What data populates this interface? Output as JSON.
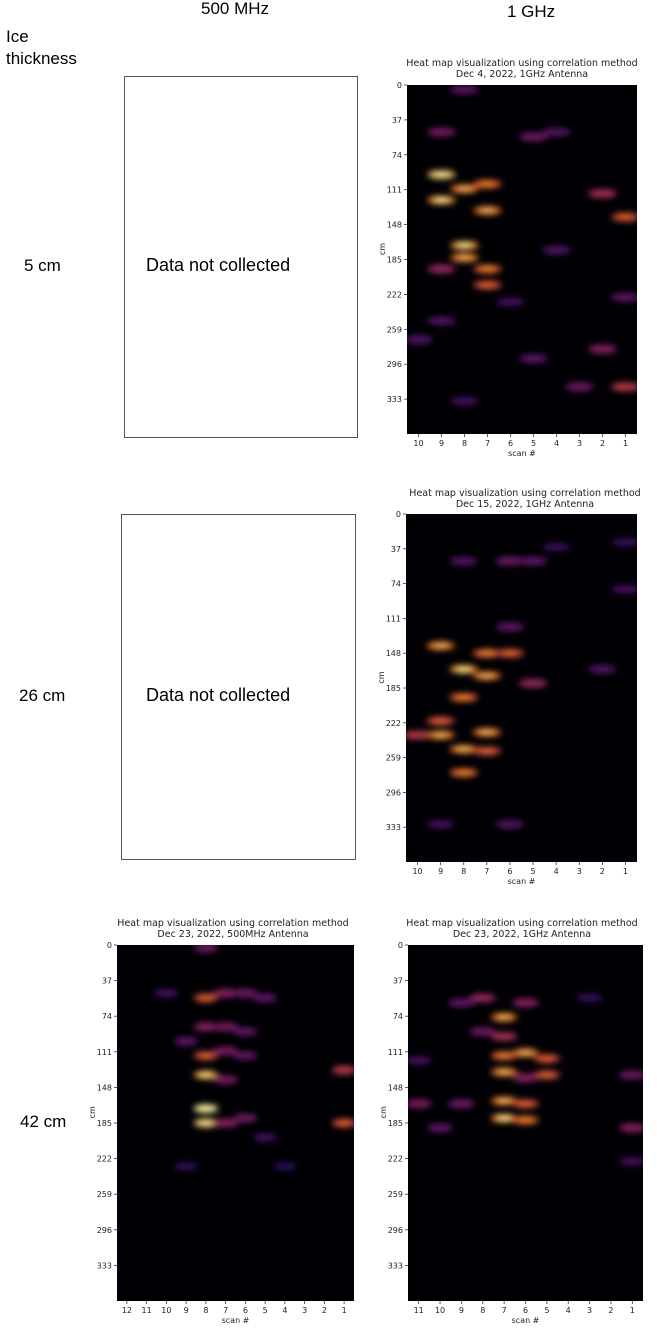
{
  "columns": {
    "mhz500": "500 MHz",
    "ghz1": "1 GHz"
  },
  "ice_label": {
    "line1": "Ice",
    "line2": "thickness"
  },
  "rows": [
    {
      "label": "5 cm"
    },
    {
      "label": "26 cm"
    },
    {
      "label": "42 cm"
    }
  ],
  "placeholders": [
    {
      "text": "Data not collected"
    },
    {
      "text": "Data not collected"
    }
  ],
  "colors": {
    "heat_low": "#000004",
    "heat_mid": "#7a1d8a",
    "heat_high": "#fcf7a0"
  },
  "chart_data": [
    {
      "type": "heatmap",
      "title_line1": "Heat map visualization using correlation method",
      "title_line2": "Dec 4, 2022, 1GHz Antenna",
      "xlabel": "scan #",
      "ylabel": "cm",
      "x_ticks": [
        "10",
        "9",
        "8",
        "7",
        "6",
        "5",
        "4",
        "3",
        "2",
        "1"
      ],
      "y_ticks": [
        "0",
        "37",
        "74",
        "111",
        "148",
        "185",
        "222",
        "259",
        "296",
        "333"
      ],
      "ylim": [
        0,
        370
      ],
      "colormap": "inferno",
      "hotspots": [
        {
          "scan": 9,
          "cm": 95,
          "v": 0.95
        },
        {
          "scan": 9,
          "cm": 122,
          "v": 0.9
        },
        {
          "scan": 8,
          "cm": 110,
          "v": 0.85
        },
        {
          "scan": 7,
          "cm": 105,
          "v": 0.8
        },
        {
          "scan": 7,
          "cm": 133,
          "v": 0.85
        },
        {
          "scan": 8,
          "cm": 170,
          "v": 0.9
        },
        {
          "scan": 8,
          "cm": 183,
          "v": 0.85
        },
        {
          "scan": 7,
          "cm": 195,
          "v": 0.8
        },
        {
          "scan": 7,
          "cm": 212,
          "v": 0.75
        },
        {
          "scan": 9,
          "cm": 195,
          "v": 0.6
        },
        {
          "scan": 8,
          "cm": 5,
          "v": 0.4
        },
        {
          "scan": 9,
          "cm": 50,
          "v": 0.5
        },
        {
          "scan": 2,
          "cm": 115,
          "v": 0.65
        },
        {
          "scan": 1,
          "cm": 140,
          "v": 0.75
        },
        {
          "scan": 2,
          "cm": 280,
          "v": 0.55
        },
        {
          "scan": 1,
          "cm": 320,
          "v": 0.7
        },
        {
          "scan": 3,
          "cm": 320,
          "v": 0.45
        },
        {
          "scan": 5,
          "cm": 55,
          "v": 0.45
        },
        {
          "scan": 4,
          "cm": 50,
          "v": 0.35
        },
        {
          "scan": 10,
          "cm": 270,
          "v": 0.35
        },
        {
          "scan": 5,
          "cm": 290,
          "v": 0.4
        },
        {
          "scan": 9,
          "cm": 250,
          "v": 0.35
        },
        {
          "scan": 1,
          "cm": 225,
          "v": 0.4
        },
        {
          "scan": 4,
          "cm": 175,
          "v": 0.35
        },
        {
          "scan": 6,
          "cm": 230,
          "v": 0.3
        },
        {
          "scan": 8,
          "cm": 335,
          "v": 0.3
        }
      ]
    },
    {
      "type": "heatmap",
      "title_line1": "Heat map visualization using correlation method",
      "title_line2": "Dec 15, 2022, 1GHz Antenna",
      "xlabel": "scan #",
      "ylabel": "cm",
      "x_ticks": [
        "10",
        "9",
        "8",
        "7",
        "6",
        "5",
        "4",
        "3",
        "2",
        "1"
      ],
      "y_ticks": [
        "0",
        "37",
        "74",
        "111",
        "148",
        "185",
        "222",
        "259",
        "296",
        "333"
      ],
      "ylim": [
        0,
        370
      ],
      "colormap": "inferno",
      "hotspots": [
        {
          "scan": 9,
          "cm": 140,
          "v": 0.85
        },
        {
          "scan": 8,
          "cm": 165,
          "v": 0.9
        },
        {
          "scan": 7,
          "cm": 172,
          "v": 0.85
        },
        {
          "scan": 7,
          "cm": 148,
          "v": 0.8
        },
        {
          "scan": 6,
          "cm": 148,
          "v": 0.75
        },
        {
          "scan": 5,
          "cm": 180,
          "v": 0.6
        },
        {
          "scan": 8,
          "cm": 195,
          "v": 0.8
        },
        {
          "scan": 9,
          "cm": 220,
          "v": 0.75
        },
        {
          "scan": 10,
          "cm": 235,
          "v": 0.7
        },
        {
          "scan": 9,
          "cm": 235,
          "v": 0.85
        },
        {
          "scan": 7,
          "cm": 232,
          "v": 0.85
        },
        {
          "scan": 8,
          "cm": 250,
          "v": 0.85
        },
        {
          "scan": 7,
          "cm": 252,
          "v": 0.75
        },
        {
          "scan": 8,
          "cm": 275,
          "v": 0.8
        },
        {
          "scan": 6,
          "cm": 50,
          "v": 0.45
        },
        {
          "scan": 5,
          "cm": 50,
          "v": 0.4
        },
        {
          "scan": 8,
          "cm": 50,
          "v": 0.35
        },
        {
          "scan": 6,
          "cm": 120,
          "v": 0.4
        },
        {
          "scan": 2,
          "cm": 165,
          "v": 0.35
        },
        {
          "scan": 1,
          "cm": 80,
          "v": 0.3
        },
        {
          "scan": 6,
          "cm": 330,
          "v": 0.35
        },
        {
          "scan": 9,
          "cm": 330,
          "v": 0.3
        },
        {
          "scan": 4,
          "cm": 35,
          "v": 0.25
        },
        {
          "scan": 1,
          "cm": 30,
          "v": 0.25
        }
      ]
    },
    {
      "type": "heatmap",
      "title_line1": "Heat map visualization using correlation method",
      "title_line2": "Dec 23, 2022, 500MHz Antenna",
      "xlabel": "scan #",
      "ylabel": "cm",
      "x_ticks": [
        "12",
        "11",
        "10",
        "9",
        "8",
        "7",
        "6",
        "5",
        "4",
        "3",
        "2",
        "1"
      ],
      "y_ticks": [
        "0",
        "37",
        "74",
        "111",
        "148",
        "185",
        "222",
        "259",
        "296",
        "333"
      ],
      "ylim": [
        0,
        370
      ],
      "colormap": "inferno",
      "hotspots": [
        {
          "scan": 8,
          "cm": 55,
          "v": 0.75
        },
        {
          "scan": 7,
          "cm": 50,
          "v": 0.55
        },
        {
          "scan": 6,
          "cm": 50,
          "v": 0.45
        },
        {
          "scan": 5,
          "cm": 55,
          "v": 0.4
        },
        {
          "scan": 8,
          "cm": 85,
          "v": 0.55
        },
        {
          "scan": 7,
          "cm": 85,
          "v": 0.5
        },
        {
          "scan": 6,
          "cm": 90,
          "v": 0.4
        },
        {
          "scan": 8,
          "cm": 115,
          "v": 0.75
        },
        {
          "scan": 7,
          "cm": 110,
          "v": 0.5
        },
        {
          "scan": 6,
          "cm": 115,
          "v": 0.4
        },
        {
          "scan": 8,
          "cm": 135,
          "v": 0.9
        },
        {
          "scan": 7,
          "cm": 140,
          "v": 0.5
        },
        {
          "scan": 8,
          "cm": 170,
          "v": 1.0
        },
        {
          "scan": 8,
          "cm": 185,
          "v": 0.95
        },
        {
          "scan": 7,
          "cm": 185,
          "v": 0.55
        },
        {
          "scan": 6,
          "cm": 180,
          "v": 0.45
        },
        {
          "scan": 9,
          "cm": 100,
          "v": 0.4
        },
        {
          "scan": 10,
          "cm": 50,
          "v": 0.3
        },
        {
          "scan": 1,
          "cm": 130,
          "v": 0.7
        },
        {
          "scan": 1,
          "cm": 185,
          "v": 0.75
        },
        {
          "scan": 8,
          "cm": 3,
          "v": 0.45
        },
        {
          "scan": 5,
          "cm": 200,
          "v": 0.3
        },
        {
          "scan": 9,
          "cm": 230,
          "v": 0.25
        },
        {
          "scan": 4,
          "cm": 230,
          "v": 0.2
        }
      ]
    },
    {
      "type": "heatmap",
      "title_line1": "Heat map visualization using correlation method",
      "title_line2": "Dec 23, 2022, 1GHz Antenna",
      "xlabel": "scan #",
      "ylabel": "cm",
      "x_ticks": [
        "11",
        "10",
        "9",
        "8",
        "7",
        "6",
        "5",
        "4",
        "3",
        "2",
        "1"
      ],
      "y_ticks": [
        "0",
        "37",
        "74",
        "111",
        "148",
        "185",
        "222",
        "259",
        "296",
        "333"
      ],
      "ylim": [
        0,
        370
      ],
      "colormap": "inferno",
      "hotspots": [
        {
          "scan": 7,
          "cm": 75,
          "v": 0.85
        },
        {
          "scan": 6,
          "cm": 60,
          "v": 0.55
        },
        {
          "scan": 8,
          "cm": 55,
          "v": 0.6
        },
        {
          "scan": 7,
          "cm": 95,
          "v": 0.65
        },
        {
          "scan": 8,
          "cm": 90,
          "v": 0.45
        },
        {
          "scan": 6,
          "cm": 112,
          "v": 0.85
        },
        {
          "scan": 7,
          "cm": 115,
          "v": 0.8
        },
        {
          "scan": 5,
          "cm": 118,
          "v": 0.75
        },
        {
          "scan": 7,
          "cm": 132,
          "v": 0.85
        },
        {
          "scan": 5,
          "cm": 135,
          "v": 0.75
        },
        {
          "scan": 6,
          "cm": 138,
          "v": 0.55
        },
        {
          "scan": 7,
          "cm": 162,
          "v": 0.85
        },
        {
          "scan": 6,
          "cm": 165,
          "v": 0.75
        },
        {
          "scan": 7,
          "cm": 180,
          "v": 0.9
        },
        {
          "scan": 6,
          "cm": 182,
          "v": 0.8
        },
        {
          "scan": 9,
          "cm": 165,
          "v": 0.45
        },
        {
          "scan": 11,
          "cm": 165,
          "v": 0.5
        },
        {
          "scan": 10,
          "cm": 190,
          "v": 0.4
        },
        {
          "scan": 9,
          "cm": 60,
          "v": 0.4
        },
        {
          "scan": 1,
          "cm": 135,
          "v": 0.45
        },
        {
          "scan": 1,
          "cm": 190,
          "v": 0.55
        },
        {
          "scan": 3,
          "cm": 55,
          "v": 0.25
        },
        {
          "scan": 11,
          "cm": 120,
          "v": 0.3
        },
        {
          "scan": 1,
          "cm": 225,
          "v": 0.3
        }
      ]
    }
  ]
}
